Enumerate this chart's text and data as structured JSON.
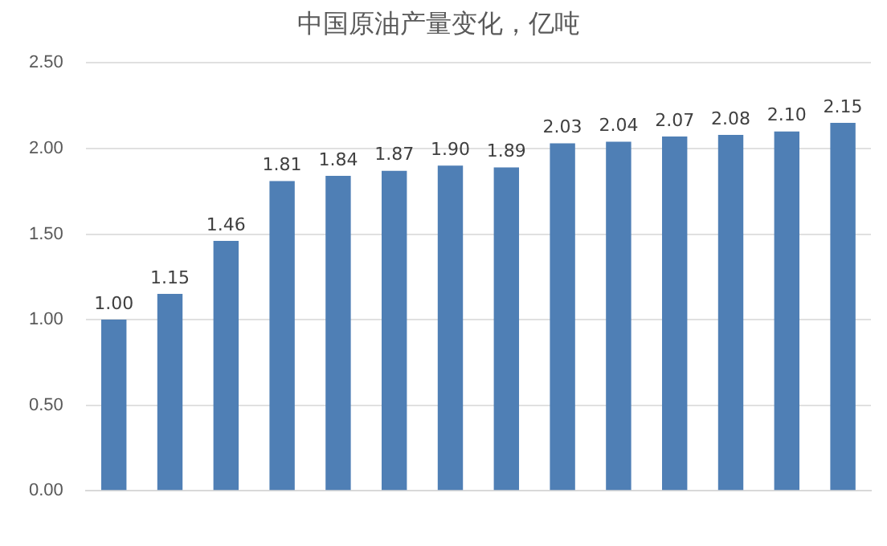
{
  "chart_data": {
    "type": "bar",
    "title": "中国原油产量变化，亿吨",
    "categories": [
      null,
      null,
      null,
      null,
      null,
      null,
      null,
      null,
      null,
      null,
      null,
      null,
      null,
      null
    ],
    "values": [
      1.0,
      1.15,
      1.46,
      1.81,
      1.84,
      1.87,
      1.9,
      1.89,
      2.03,
      2.04,
      2.07,
      2.08,
      2.1,
      2.15
    ],
    "color": "#4f7fb5",
    "ylim": [
      0,
      2.5
    ],
    "yticks": [
      {
        "value": 0,
        "label": "0.00"
      },
      {
        "value": 0.5,
        "label": "0.50"
      },
      {
        "value": 1,
        "label": "1.00"
      },
      {
        "value": 1.5,
        "label": "1.50"
      },
      {
        "value": 2,
        "label": "2.00"
      },
      {
        "value": 2.5,
        "label": "2.50"
      }
    ],
    "value_labels": [
      "1.00",
      "1.15",
      "1.46",
      "1.81",
      "1.84",
      "1.87",
      "1.90",
      "1.89",
      "2.03",
      "2.04",
      "2.07",
      "2.08",
      "2.10",
      "2.15"
    ],
    "grid": "y",
    "legend": false
  }
}
